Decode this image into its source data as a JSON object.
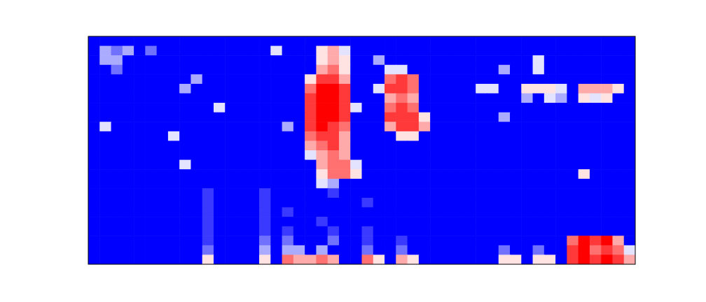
{
  "chart_data": {
    "type": "heatmap",
    "tick_labels": false,
    "zlim": [
      0,
      9
    ],
    "cells": [
      [
        0,
        0,
        0,
        0,
        0,
        0,
        0,
        0,
        0,
        0,
        0,
        0,
        0,
        0,
        0,
        0,
        0,
        0,
        0,
        0,
        0,
        0,
        0,
        0,
        0,
        0,
        0,
        0,
        0,
        0,
        0,
        0,
        0,
        0,
        0,
        0,
        0,
        0,
        0,
        0,
        0,
        0,
        0,
        0,
        0,
        0,
        0,
        0
      ],
      [
        0,
        3,
        2,
        3,
        0,
        2,
        0,
        0,
        0,
        0,
        0,
        0,
        0,
        0,
        0,
        0,
        4,
        0,
        0,
        0,
        5,
        6,
        4,
        0,
        0,
        0,
        0,
        0,
        0,
        0,
        0,
        0,
        0,
        0,
        0,
        0,
        0,
        0,
        0,
        0,
        0,
        0,
        0,
        0,
        0,
        0,
        0,
        0
      ],
      [
        0,
        3,
        3,
        0,
        0,
        0,
        0,
        0,
        0,
        0,
        0,
        0,
        0,
        0,
        0,
        0,
        0,
        0,
        0,
        0,
        5,
        6,
        5,
        0,
        0,
        3,
        0,
        0,
        0,
        0,
        0,
        0,
        0,
        0,
        0,
        0,
        0,
        0,
        0,
        4,
        0,
        0,
        0,
        0,
        0,
        0,
        0,
        0
      ],
      [
        0,
        0,
        2,
        0,
        0,
        0,
        0,
        0,
        0,
        0,
        0,
        0,
        0,
        0,
        0,
        0,
        0,
        0,
        0,
        0,
        6,
        7,
        5,
        0,
        0,
        0,
        4,
        4,
        0,
        0,
        0,
        0,
        0,
        0,
        0,
        0,
        3,
        0,
        0,
        4,
        0,
        0,
        0,
        0,
        0,
        0,
        0,
        0
      ],
      [
        0,
        0,
        0,
        0,
        0,
        0,
        0,
        0,
        0,
        3,
        0,
        0,
        0,
        0,
        0,
        0,
        0,
        0,
        0,
        5,
        8,
        8,
        6,
        0,
        0,
        0,
        7,
        8,
        7,
        0,
        0,
        0,
        0,
        0,
        0,
        0,
        0,
        0,
        0,
        0,
        0,
        0,
        0,
        0,
        0,
        0,
        0,
        0
      ],
      [
        0,
        0,
        0,
        0,
        0,
        0,
        0,
        0,
        3,
        0,
        0,
        0,
        0,
        0,
        0,
        0,
        0,
        0,
        0,
        7,
        9,
        9,
        8,
        0,
        0,
        4,
        8,
        8,
        7,
        0,
        0,
        0,
        0,
        0,
        4,
        4,
        0,
        0,
        5,
        5,
        5,
        4,
        0,
        6,
        6,
        6,
        5,
        0
      ],
      [
        0,
        0,
        0,
        0,
        0,
        0,
        0,
        0,
        0,
        0,
        0,
        0,
        0,
        0,
        0,
        0,
        0,
        0,
        0,
        8,
        9,
        9,
        8,
        0,
        0,
        0,
        6,
        7,
        6,
        0,
        0,
        0,
        0,
        0,
        0,
        0,
        0,
        0,
        3,
        0,
        4,
        3,
        0,
        5,
        4,
        5,
        0,
        0
      ],
      [
        0,
        0,
        0,
        0,
        0,
        0,
        0,
        0,
        0,
        0,
        0,
        4,
        0,
        0,
        0,
        0,
        0,
        0,
        0,
        8,
        9,
        9,
        8,
        4,
        0,
        0,
        7,
        8,
        7,
        0,
        0,
        0,
        0,
        0,
        0,
        0,
        0,
        0,
        0,
        0,
        0,
        0,
        0,
        0,
        0,
        0,
        0,
        0
      ],
      [
        0,
        0,
        0,
        0,
        0,
        0,
        0,
        0,
        0,
        0,
        0,
        0,
        0,
        0,
        0,
        0,
        0,
        0,
        0,
        8,
        9,
        9,
        8,
        0,
        0,
        0,
        8,
        8,
        8,
        5,
        0,
        0,
        0,
        0,
        0,
        0,
        3,
        0,
        0,
        0,
        0,
        0,
        0,
        0,
        0,
        0,
        0,
        0
      ],
      [
        0,
        4,
        0,
        0,
        0,
        0,
        0,
        0,
        0,
        0,
        0,
        0,
        0,
        0,
        0,
        0,
        0,
        3,
        0,
        8,
        9,
        8,
        7,
        0,
        0,
        0,
        6,
        8,
        8,
        6,
        0,
        0,
        0,
        0,
        0,
        0,
        0,
        0,
        0,
        0,
        0,
        0,
        0,
        0,
        0,
        0,
        0,
        0
      ],
      [
        0,
        0,
        0,
        0,
        0,
        0,
        0,
        4,
        0,
        0,
        0,
        0,
        0,
        0,
        0,
        0,
        0,
        0,
        0,
        7,
        8,
        8,
        6,
        0,
        0,
        0,
        0,
        5,
        5,
        0,
        0,
        0,
        0,
        0,
        0,
        0,
        0,
        0,
        0,
        0,
        0,
        0,
        0,
        0,
        0,
        0,
        0,
        0
      ],
      [
        0,
        0,
        0,
        0,
        0,
        0,
        0,
        0,
        0,
        0,
        0,
        0,
        0,
        0,
        0,
        0,
        0,
        0,
        0,
        6,
        7,
        8,
        6,
        0,
        0,
        0,
        0,
        0,
        0,
        0,
        0,
        0,
        0,
        0,
        0,
        0,
        0,
        0,
        0,
        0,
        0,
        0,
        0,
        0,
        0,
        0,
        0,
        0
      ],
      [
        0,
        0,
        0,
        0,
        0,
        0,
        0,
        0,
        0,
        0,
        0,
        0,
        0,
        0,
        0,
        0,
        0,
        0,
        0,
        4,
        6,
        7,
        6,
        0,
        0,
        0,
        0,
        0,
        0,
        0,
        0,
        0,
        0,
        0,
        0,
        0,
        0,
        0,
        0,
        0,
        0,
        0,
        0,
        0,
        0,
        0,
        0,
        0
      ],
      [
        0,
        0,
        0,
        0,
        0,
        0,
        0,
        0,
        4,
        0,
        0,
        0,
        0,
        0,
        0,
        0,
        0,
        0,
        0,
        0,
        6,
        7,
        7,
        4,
        0,
        0,
        0,
        0,
        0,
        0,
        0,
        0,
        0,
        0,
        0,
        0,
        0,
        0,
        0,
        0,
        0,
        0,
        0,
        0,
        0,
        0,
        0,
        0
      ],
      [
        0,
        0,
        0,
        0,
        0,
        0,
        0,
        0,
        0,
        0,
        0,
        0,
        0,
        0,
        0,
        0,
        0,
        0,
        0,
        0,
        5,
        7,
        7,
        5,
        0,
        0,
        0,
        0,
        0,
        0,
        0,
        0,
        0,
        0,
        0,
        0,
        0,
        0,
        0,
        0,
        0,
        0,
        0,
        5,
        0,
        0,
        0,
        0
      ],
      [
        0,
        0,
        0,
        0,
        0,
        0,
        0,
        0,
        0,
        0,
        0,
        0,
        0,
        0,
        0,
        0,
        0,
        0,
        0,
        0,
        4,
        3,
        0,
        0,
        0,
        0,
        0,
        0,
        0,
        0,
        0,
        0,
        0,
        0,
        0,
        0,
        0,
        0,
        0,
        0,
        0,
        0,
        0,
        0,
        0,
        0,
        0,
        0
      ],
      [
        0,
        0,
        0,
        0,
        0,
        0,
        0,
        0,
        0,
        0,
        1,
        0,
        0,
        0,
        0,
        1,
        0,
        0,
        0,
        0,
        0,
        1,
        0,
        0,
        0,
        0,
        0,
        0,
        0,
        0,
        0,
        0,
        0,
        0,
        0,
        0,
        0,
        0,
        0,
        0,
        0,
        0,
        0,
        0,
        0,
        0,
        0,
        0
      ],
      [
        0,
        0,
        0,
        0,
        0,
        0,
        0,
        0,
        0,
        0,
        1,
        0,
        0,
        0,
        0,
        1,
        0,
        0,
        0,
        0,
        0,
        0,
        0,
        0,
        1,
        0,
        0,
        0,
        0,
        0,
        0,
        0,
        0,
        0,
        0,
        0,
        0,
        0,
        0,
        0,
        0,
        0,
        0,
        0,
        0,
        0,
        0,
        0
      ],
      [
        0,
        0,
        0,
        0,
        0,
        0,
        0,
        0,
        0,
        0,
        1,
        0,
        0,
        0,
        0,
        1,
        0,
        1,
        0,
        0,
        0,
        0,
        0,
        0,
        0,
        0,
        0,
        0,
        0,
        0,
        0,
        0,
        0,
        0,
        0,
        0,
        0,
        0,
        0,
        0,
        0,
        0,
        0,
        0,
        0,
        0,
        0,
        0
      ],
      [
        0,
        0,
        0,
        0,
        0,
        0,
        0,
        0,
        0,
        0,
        1,
        0,
        0,
        0,
        0,
        1,
        0,
        0,
        0,
        0,
        1,
        0,
        0,
        0,
        0,
        0,
        0,
        0,
        0,
        0,
        0,
        0,
        0,
        0,
        0,
        0,
        0,
        0,
        0,
        0,
        0,
        0,
        0,
        0,
        0,
        0,
        0,
        0
      ],
      [
        0,
        0,
        0,
        0,
        0,
        0,
        0,
        0,
        0,
        0,
        1,
        0,
        0,
        0,
        0,
        1,
        0,
        1,
        0,
        0,
        0,
        1,
        0,
        0,
        1,
        0,
        0,
        0,
        0,
        0,
        0,
        0,
        0,
        0,
        0,
        0,
        0,
        0,
        0,
        0,
        0,
        0,
        0,
        0,
        0,
        0,
        0,
        0
      ],
      [
        0,
        0,
        0,
        0,
        0,
        0,
        0,
        0,
        0,
        0,
        1,
        0,
        0,
        0,
        0,
        2,
        0,
        2,
        0,
        0,
        0,
        2,
        0,
        0,
        1,
        0,
        0,
        1,
        0,
        0,
        0,
        0,
        0,
        0,
        0,
        0,
        0,
        0,
        0,
        0,
        0,
        0,
        7,
        9,
        8,
        9,
        6,
        0
      ],
      [
        0,
        0,
        0,
        0,
        0,
        0,
        0,
        0,
        0,
        0,
        2,
        0,
        0,
        0,
        0,
        3,
        0,
        3,
        3,
        0,
        3,
        0,
        0,
        0,
        2,
        0,
        0,
        2,
        0,
        0,
        0,
        0,
        0,
        0,
        0,
        0,
        2,
        0,
        0,
        2,
        0,
        0,
        8,
        9,
        7,
        8,
        7,
        4
      ],
      [
        0,
        0,
        0,
        0,
        0,
        0,
        0,
        0,
        0,
        0,
        5,
        0,
        0,
        0,
        0,
        5,
        0,
        7,
        6,
        6,
        7,
        6,
        0,
        0,
        7,
        5,
        0,
        6,
        5,
        0,
        0,
        0,
        0,
        0,
        0,
        0,
        5,
        5,
        0,
        5,
        5,
        0,
        8,
        9,
        8,
        9,
        8,
        6
      ]
    ]
  }
}
